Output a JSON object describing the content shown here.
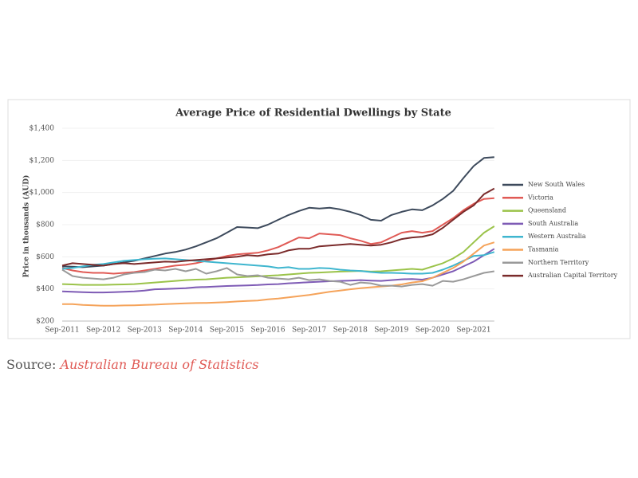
{
  "chart_data": {
    "type": "line",
    "title": "Average Price of Residential Dwellings by State",
    "y_label": "Price in thousands (AUD)",
    "categories": [
      "Sep-2011",
      null,
      null,
      null,
      "Sep-2012",
      null,
      null,
      null,
      "Sep-2013",
      null,
      null,
      null,
      "Sep-2014",
      null,
      null,
      null,
      "Sep-2015",
      null,
      null,
      null,
      "Sep-2016",
      null,
      null,
      null,
      "Sep-2017",
      null,
      null,
      null,
      "Sep-2018",
      null,
      null,
      null,
      "Sep-2019",
      null,
      null,
      null,
      "Sep-2020",
      null,
      null,
      null,
      "Sep-2021",
      null,
      null
    ],
    "ylim": [
      200,
      1400
    ],
    "yticks": [
      {
        "value": 200,
        "label": "$200"
      },
      {
        "value": 400,
        "label": "$400"
      },
      {
        "value": 600,
        "label": "$600"
      },
      {
        "value": 800,
        "label": "$800"
      },
      {
        "value": 1000,
        "label": "$1,000"
      },
      {
        "value": 1200,
        "label": "$1,200"
      },
      {
        "value": 1400,
        "label": "$1,400"
      }
    ],
    "legend": "right",
    "series": [
      {
        "name": "New South Wales",
        "color": "#3d4a5c",
        "values": [
          540,
          538,
          535,
          540,
          545,
          555,
          565,
          575,
          590,
          605,
          620,
          630,
          645,
          665,
          690,
          715,
          750,
          785,
          782,
          778,
          800,
          830,
          860,
          885,
          905,
          900,
          905,
          895,
          880,
          860,
          830,
          825,
          860,
          880,
          895,
          890,
          920,
          960,
          1010,
          1090,
          1165,
          1215,
          1220
        ]
      },
      {
        "name": "Victoria",
        "color": "#e05a55",
        "values": [
          530,
          515,
          505,
          500,
          500,
          495,
          500,
          505,
          515,
          525,
          535,
          545,
          550,
          560,
          575,
          590,
          605,
          615,
          620,
          625,
          640,
          660,
          690,
          720,
          715,
          745,
          740,
          735,
          715,
          700,
          680,
          690,
          720,
          750,
          760,
          750,
          760,
          800,
          840,
          890,
          930,
          960,
          965
        ]
      },
      {
        "name": "Queensland",
        "color": "#9bc34a",
        "values": [
          430,
          428,
          425,
          425,
          425,
          427,
          428,
          430,
          435,
          440,
          445,
          450,
          455,
          458,
          460,
          465,
          470,
          472,
          475,
          478,
          482,
          485,
          490,
          495,
          500,
          502,
          505,
          508,
          510,
          512,
          508,
          510,
          515,
          520,
          525,
          520,
          540,
          560,
          590,
          630,
          690,
          750,
          790
        ]
      },
      {
        "name": "South Australia",
        "color": "#7e5bb5",
        "values": [
          385,
          382,
          380,
          378,
          378,
          380,
          382,
          385,
          390,
          398,
          400,
          402,
          405,
          410,
          412,
          415,
          418,
          420,
          422,
          424,
          428,
          430,
          435,
          438,
          442,
          445,
          448,
          450,
          452,
          455,
          452,
          450,
          455,
          460,
          462,
          458,
          470,
          490,
          510,
          540,
          570,
          610,
          650
        ]
      },
      {
        "name": "Western Australia",
        "color": "#3fb6cf",
        "values": [
          525,
          530,
          540,
          550,
          555,
          565,
          575,
          580,
          585,
          588,
          590,
          585,
          580,
          575,
          570,
          565,
          560,
          555,
          550,
          545,
          540,
          530,
          535,
          525,
          525,
          530,
          528,
          520,
          515,
          512,
          505,
          500,
          500,
          498,
          495,
          495,
          500,
          520,
          545,
          575,
          605,
          610,
          630
        ]
      },
      {
        "name": "Tasmania",
        "color": "#f5a35a",
        "values": [
          305,
          305,
          300,
          298,
          295,
          295,
          297,
          298,
          300,
          302,
          305,
          308,
          310,
          312,
          313,
          315,
          318,
          322,
          325,
          328,
          335,
          340,
          348,
          355,
          362,
          372,
          382,
          390,
          398,
          405,
          410,
          415,
          420,
          428,
          440,
          448,
          470,
          500,
          530,
          570,
          620,
          670,
          690
        ]
      },
      {
        "name": "Northern Territory",
        "color": "#9a9a9a",
        "values": [
          520,
          480,
          470,
          465,
          460,
          470,
          490,
          500,
          505,
          520,
          515,
          525,
          510,
          525,
          495,
          510,
          530,
          490,
          480,
          485,
          470,
          465,
          460,
          470,
          455,
          460,
          450,
          445,
          425,
          440,
          435,
          420,
          420,
          415,
          425,
          430,
          420,
          450,
          445,
          460,
          480,
          500,
          510
        ]
      },
      {
        "name": "Australian Capital Territory",
        "color": "#7a2a2a",
        "values": [
          545,
          560,
          555,
          550,
          545,
          555,
          560,
          555,
          560,
          565,
          570,
          568,
          575,
          580,
          585,
          590,
          595,
          600,
          610,
          605,
          615,
          620,
          640,
          650,
          650,
          665,
          670,
          675,
          680,
          675,
          670,
          675,
          690,
          710,
          720,
          725,
          740,
          780,
          830,
          880,
          920,
          990,
          1025
        ]
      }
    ]
  },
  "source": {
    "prefix": "Source:",
    "name": "Australian Bureau of Statistics"
  }
}
